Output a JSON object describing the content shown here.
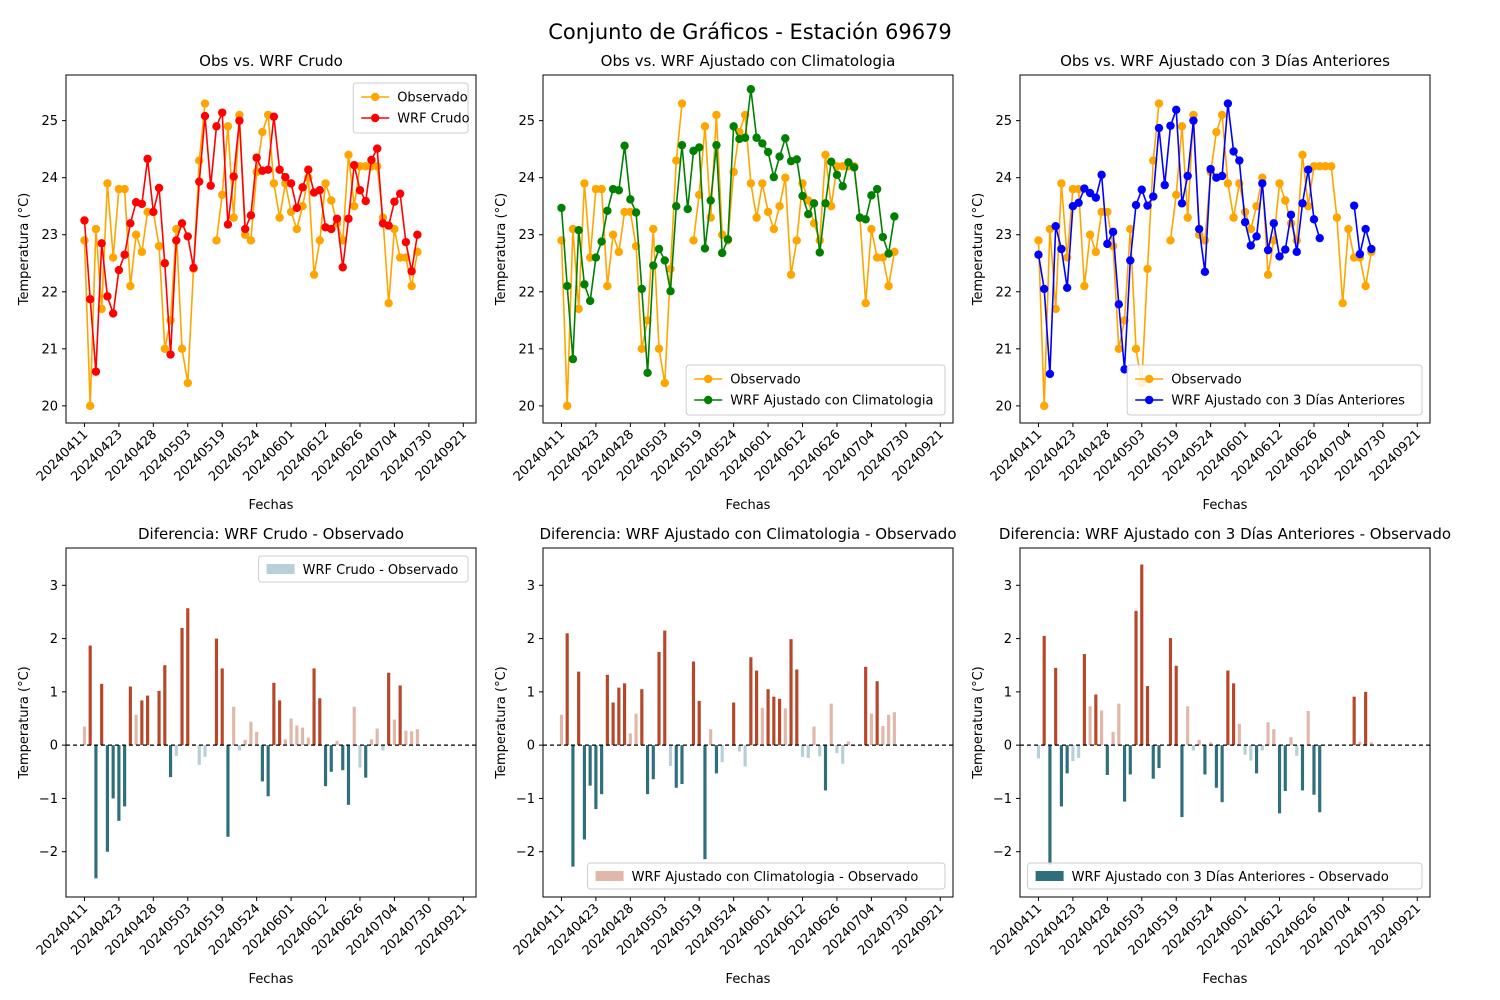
{
  "figure": {
    "suptitle": "Conjunto de Gráficos - Estación 69679"
  },
  "colors": {
    "observado": "#ffa500",
    "crudo": "#ff0000",
    "climatologia": "#008000",
    "tres_dias": "#0000ff",
    "pos_high": "#b7472a",
    "pos_low": "#dfb8ab",
    "neg_high": "#2f6f7c",
    "neg_low": "#b8cfd7"
  },
  "chart_data": [
    {
      "type": "line",
      "title": "Obs vs. WRF Crudo",
      "xlabel": "Fechas",
      "ylabel": "Temperatura (°C)",
      "ylim": [
        19.7,
        25.8
      ],
      "yticks": [
        "20",
        "21",
        "22",
        "23",
        "24",
        "25"
      ],
      "xtick_labels": [
        "20240411",
        "20240423",
        "20240428",
        "20240503",
        "20240519",
        "20240524",
        "20240601",
        "20240612",
        "20240626",
        "20240704",
        "20240730",
        "20240921"
      ],
      "legend_position": "upper right",
      "series": [
        {
          "name": "Observado",
          "color_key": "observado",
          "values": [
            22.9,
            20.0,
            23.1,
            21.7,
            23.9,
            22.6,
            23.8,
            23.8,
            22.1,
            23.0,
            22.7,
            23.4,
            23.4,
            22.8,
            21.0,
            21.5,
            23.1,
            21.0,
            20.4,
            22.4,
            24.3,
            25.3,
            null,
            22.9,
            23.7,
            24.9,
            23.3,
            25.1,
            23.0,
            22.9,
            24.1,
            24.8,
            25.1,
            23.9,
            23.3,
            23.9,
            23.4,
            23.1,
            23.5,
            24.0,
            22.3,
            22.9,
            23.9,
            23.6,
            23.2,
            22.9,
            24.4,
            23.5,
            24.2,
            24.2,
            24.2,
            24.2,
            23.3,
            21.8,
            23.1,
            22.6,
            22.6,
            22.1,
            22.7
          ]
        },
        {
          "name": "WRF Crudo",
          "color_key": "crudo",
          "values": [
            23.25,
            21.87,
            20.6,
            22.85,
            21.92,
            21.62,
            22.38,
            22.65,
            23.2,
            23.57,
            23.54,
            24.33,
            23.4,
            23.82,
            22.5,
            20.9,
            22.9,
            23.2,
            22.97,
            22.42,
            23.93,
            25.08,
            23.86,
            24.9,
            25.14,
            23.18,
            24.02,
            25.0,
            23.1,
            23.34,
            24.35,
            24.12,
            24.14,
            25.07,
            24.14,
            24.01,
            23.9,
            23.47,
            23.83,
            24.14,
            23.74,
            23.78,
            23.13,
            23.1,
            23.28,
            22.43,
            23.28,
            24.22,
            23.78,
            23.59,
            24.31,
            24.51,
            23.2,
            23.16,
            23.58,
            23.72,
            22.87,
            22.36,
            23.0
          ]
        }
      ]
    },
    {
      "type": "line",
      "title": "Obs vs. WRF Ajustado con Climatologia",
      "xlabel": "Fechas",
      "ylabel": "Temperatura (°C)",
      "ylim": [
        19.7,
        25.8
      ],
      "yticks": [
        "20",
        "21",
        "22",
        "23",
        "24",
        "25"
      ],
      "xtick_labels": [
        "20240411",
        "20240423",
        "20240428",
        "20240503",
        "20240519",
        "20240524",
        "20240601",
        "20240612",
        "20240626",
        "20240704",
        "20240730",
        "20240921"
      ],
      "legend_position": "lower right",
      "series": [
        {
          "name": "Observado",
          "color_key": "observado",
          "values": [
            22.9,
            20.0,
            23.1,
            21.7,
            23.9,
            22.6,
            23.8,
            23.8,
            22.1,
            23.0,
            22.7,
            23.4,
            23.4,
            22.8,
            21.0,
            21.5,
            23.1,
            21.0,
            20.4,
            22.4,
            24.3,
            25.3,
            null,
            22.9,
            23.7,
            24.9,
            23.3,
            25.1,
            23.0,
            22.9,
            24.1,
            24.8,
            25.1,
            23.9,
            23.3,
            23.9,
            23.4,
            23.1,
            23.5,
            24.0,
            22.3,
            22.9,
            23.9,
            23.6,
            23.2,
            22.9,
            24.4,
            23.5,
            24.2,
            24.2,
            24.2,
            24.2,
            23.3,
            21.8,
            23.1,
            22.6,
            22.6,
            22.1,
            22.7
          ]
        },
        {
          "name": "WRF Ajustado con Climatologia",
          "color_key": "climatologia",
          "values": [
            23.47,
            22.1,
            20.82,
            23.08,
            22.13,
            21.84,
            22.6,
            22.88,
            23.42,
            23.8,
            23.78,
            24.56,
            23.62,
            23.39,
            22.05,
            20.58,
            22.46,
            22.75,
            22.55,
            22.01,
            23.5,
            24.57,
            23.45,
            24.47,
            24.53,
            22.76,
            23.6,
            24.57,
            22.68,
            22.92,
            24.9,
            24.68,
            24.7,
            25.55,
            24.7,
            24.6,
            24.45,
            24.01,
            24.37,
            24.69,
            24.29,
            24.32,
            23.68,
            23.36,
            23.55,
            22.69,
            23.55,
            24.28,
            24.05,
            23.85,
            24.27,
            24.18,
            23.3,
            23.27,
            23.69,
            23.8,
            22.96,
            22.67,
            23.32
          ]
        }
      ]
    },
    {
      "type": "line",
      "title": "Obs vs. WRF Ajustado con 3 Días Anteriores",
      "xlabel": "Fechas",
      "ylabel": "Temperatura (°C)",
      "ylim": [
        19.7,
        25.8
      ],
      "yticks": [
        "20",
        "21",
        "22",
        "23",
        "24",
        "25"
      ],
      "xtick_labels": [
        "20240411",
        "20240423",
        "20240428",
        "20240503",
        "20240519",
        "20240524",
        "20240601",
        "20240612",
        "20240626",
        "20240704",
        "20240730",
        "20240921"
      ],
      "legend_position": "lower right",
      "series": [
        {
          "name": "Observado",
          "color_key": "observado",
          "values": [
            22.9,
            20.0,
            23.1,
            21.7,
            23.9,
            22.6,
            23.8,
            23.8,
            22.1,
            23.0,
            22.7,
            23.4,
            23.4,
            22.8,
            21.0,
            21.5,
            23.1,
            21.0,
            20.4,
            22.4,
            24.3,
            25.3,
            null,
            22.9,
            23.7,
            24.9,
            23.3,
            25.1,
            23.0,
            22.9,
            24.1,
            24.8,
            25.1,
            23.9,
            23.3,
            23.9,
            23.4,
            23.1,
            23.5,
            24.0,
            22.3,
            22.9,
            23.9,
            23.6,
            23.2,
            22.9,
            24.4,
            23.5,
            24.2,
            24.2,
            24.2,
            24.2,
            23.3,
            21.8,
            23.1,
            22.6,
            22.6,
            22.1,
            22.7
          ]
        },
        {
          "name": "WRF Ajustado con 3 Días Anteriores",
          "color_key": "tres_dias",
          "values": [
            22.65,
            22.05,
            20.56,
            23.15,
            22.75,
            22.07,
            23.5,
            23.56,
            23.81,
            23.73,
            23.65,
            24.05,
            22.84,
            23.05,
            21.78,
            20.64,
            22.55,
            23.52,
            23.79,
            23.51,
            23.67,
            24.87,
            23.87,
            24.91,
            25.19,
            23.55,
            24.03,
            25.0,
            23.1,
            22.35,
            24.15,
            24.0,
            24.03,
            25.3,
            24.46,
            24.3,
            23.22,
            22.81,
            22.97,
            23.9,
            22.73,
            23.2,
            22.62,
            22.74,
            23.35,
            22.7,
            23.55,
            24.14,
            23.27,
            22.94,
            null,
            null,
            null,
            null,
            null,
            23.51,
            22.66,
            23.1,
            22.75
          ]
        }
      ]
    },
    {
      "type": "bar",
      "title": "Diferencia: WRF Crudo - Observado",
      "xlabel": "Fechas",
      "ylabel": "Temperatura (°C)",
      "ylim": [
        -2.85,
        3.7
      ],
      "yticks": [
        "−2",
        "−1",
        "0",
        "1",
        "2",
        "3"
      ],
      "xtick_labels": [
        "20240411",
        "20240423",
        "20240428",
        "20240503",
        "20240519",
        "20240524",
        "20240601",
        "20240612",
        "20240626",
        "20240704",
        "20240730",
        "20240921"
      ],
      "legend_position": "upper right",
      "legend": {
        "label": "WRF Crudo - Observado",
        "swatch_value": -0.3
      },
      "series": [
        {
          "name": "WRF Crudo - Observado",
          "values": [
            0.35,
            1.87,
            -2.5,
            1.15,
            -2.0,
            -1.0,
            -1.42,
            -1.15,
            1.1,
            0.57,
            0.84,
            0.93,
            0.0,
            1.02,
            1.5,
            -0.6,
            -0.2,
            2.2,
            2.57,
            0.02,
            -0.37,
            -0.22,
            null,
            2.0,
            1.44,
            -1.72,
            0.72,
            -0.1,
            0.1,
            0.44,
            0.25,
            -0.68,
            -0.96,
            1.17,
            0.84,
            0.11,
            0.5,
            0.37,
            0.33,
            0.14,
            1.44,
            0.88,
            -0.77,
            -0.5,
            0.08,
            -0.47,
            -1.12,
            0.72,
            -0.42,
            -0.61,
            0.11,
            0.31,
            -0.1,
            1.36,
            0.48,
            1.12,
            0.27,
            0.26,
            0.3
          ]
        }
      ]
    },
    {
      "type": "bar",
      "title": "Diferencia: WRF Ajustado con Climatologia - Observado",
      "xlabel": "Fechas",
      "ylabel": "Temperatura (°C)",
      "ylim": [
        -2.85,
        3.7
      ],
      "yticks": [
        "−2",
        "−1",
        "0",
        "1",
        "2",
        "3"
      ],
      "xtick_labels": [
        "20240411",
        "20240423",
        "20240428",
        "20240503",
        "20240519",
        "20240524",
        "20240601",
        "20240612",
        "20240626",
        "20240704",
        "20240730",
        "20240921"
      ],
      "legend_position": "lower right",
      "legend": {
        "label": "WRF Ajustado con Climatologia - Observado",
        "swatch_value": 0.3
      },
      "series": [
        {
          "name": "WRF Ajustado con Climatologia - Observado",
          "values": [
            0.57,
            2.1,
            -2.28,
            1.38,
            -1.77,
            -0.76,
            -1.2,
            -0.92,
            1.32,
            0.8,
            1.08,
            1.16,
            0.22,
            0.59,
            1.05,
            -0.92,
            -0.64,
            1.75,
            2.15,
            -0.39,
            -0.8,
            -0.73,
            null,
            1.57,
            0.83,
            -2.14,
            0.3,
            -0.53,
            -0.32,
            0.02,
            0.8,
            -0.12,
            -0.4,
            1.65,
            1.4,
            0.7,
            1.05,
            0.91,
            0.87,
            0.69,
            1.99,
            1.42,
            -0.22,
            -0.24,
            0.35,
            -0.21,
            -0.85,
            0.78,
            -0.15,
            -0.35,
            0.07,
            -0.02,
            0.0,
            1.47,
            0.59,
            1.2,
            0.36,
            0.57,
            0.62
          ]
        }
      ]
    },
    {
      "type": "bar",
      "title": "Diferencia: WRF Ajustado con 3 Días Anteriores - Observado",
      "xlabel": "Fechas",
      "ylabel": "Temperatura (°C)",
      "ylim": [
        -2.85,
        3.7
      ],
      "yticks": [
        "−2",
        "−1",
        "0",
        "1",
        "2",
        "3"
      ],
      "xtick_labels": [
        "20240411",
        "20240423",
        "20240428",
        "20240503",
        "20240519",
        "20240524",
        "20240601",
        "20240612",
        "20240626",
        "20240704",
        "20240730",
        "20240921"
      ],
      "legend_position": "lower right",
      "legend": {
        "label": "WRF Ajustado con 3 Días Anteriores - Observado",
        "swatch_value": -1.1
      },
      "series": [
        {
          "name": "WRF Ajustado con 3 Días Anteriores - Observado",
          "values": [
            -0.25,
            2.05,
            -2.25,
            1.45,
            -1.15,
            -0.53,
            -0.3,
            -0.24,
            1.71,
            0.73,
            0.95,
            0.65,
            -0.56,
            0.25,
            0.78,
            -1.06,
            -0.55,
            2.52,
            3.39,
            1.11,
            -0.63,
            -0.43,
            null,
            2.01,
            1.49,
            -1.35,
            0.73,
            -0.1,
            0.1,
            -0.55,
            0.05,
            -0.8,
            -1.07,
            1.4,
            1.16,
            0.4,
            -0.18,
            -0.29,
            -0.53,
            -0.1,
            0.43,
            0.3,
            -1.28,
            -0.86,
            0.15,
            -0.2,
            -0.85,
            0.64,
            -0.93,
            -1.26,
            null,
            null,
            null,
            null,
            null,
            0.91,
            0.06,
            1.0,
            0.05
          ]
        }
      ]
    }
  ]
}
